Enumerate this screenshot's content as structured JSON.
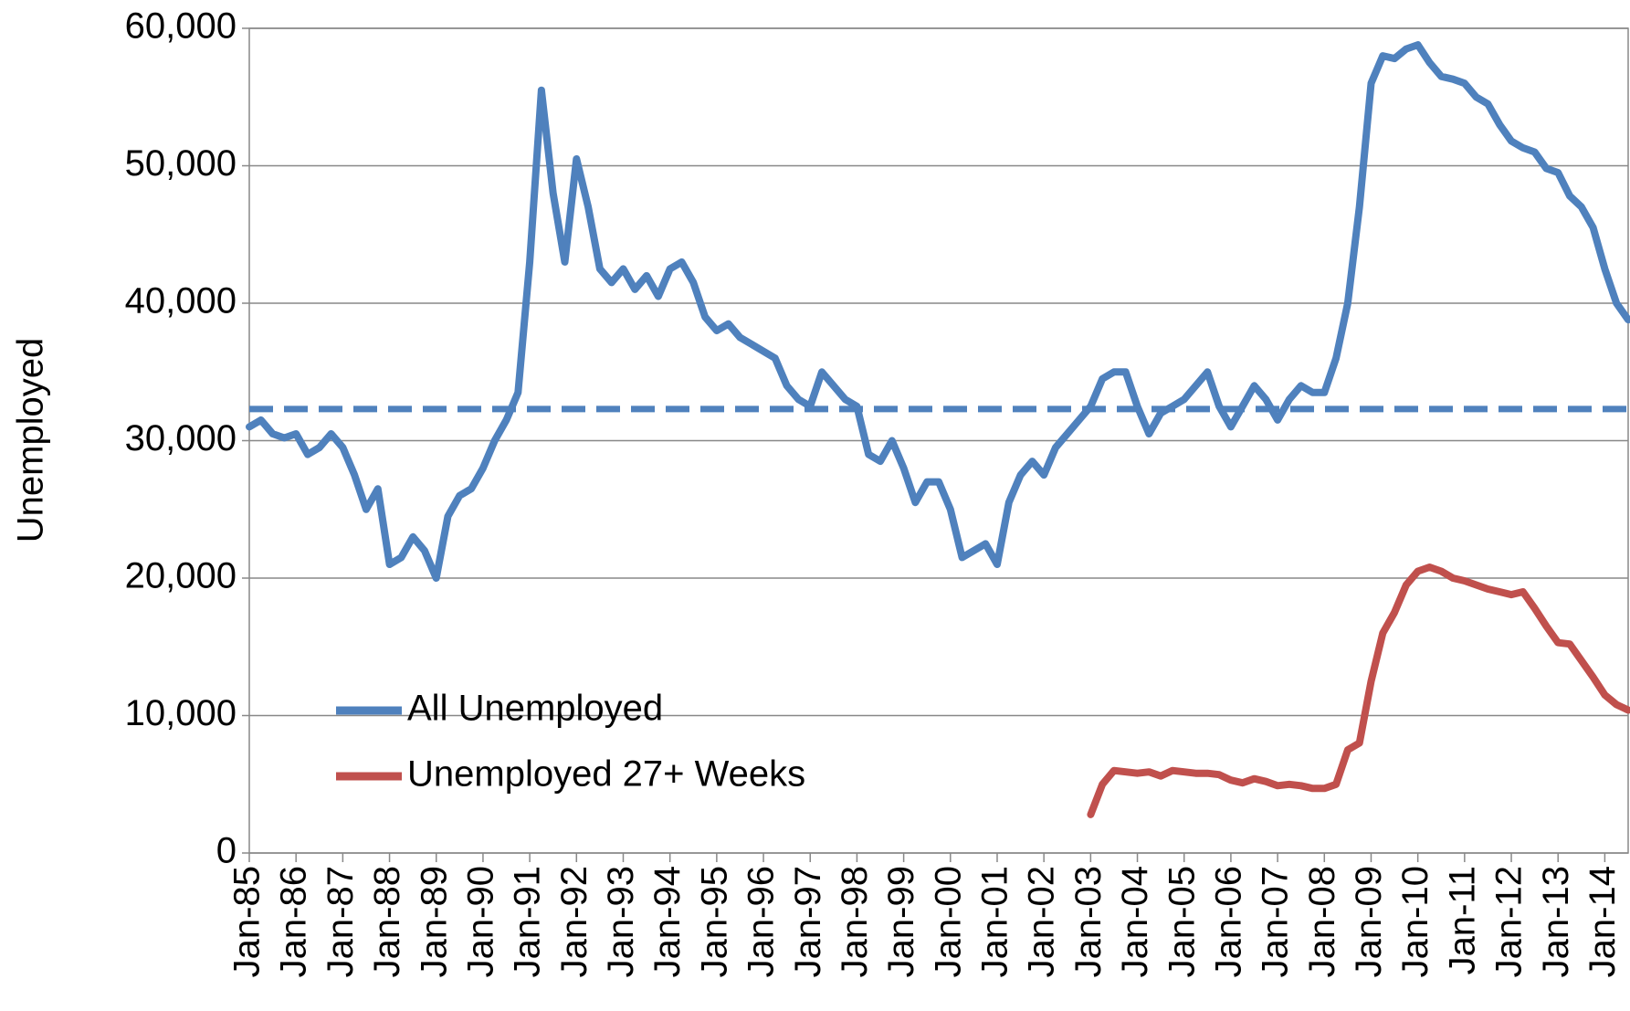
{
  "chart_data": {
    "type": "line",
    "y_label": "Unemployed",
    "categories": [
      "Jan-85",
      null,
      null,
      null,
      "Jan-86",
      null,
      null,
      null,
      "Jan-87",
      null,
      null,
      null,
      "Jan-88",
      null,
      null,
      null,
      "Jan-89",
      null,
      null,
      null,
      "Jan-90",
      null,
      null,
      null,
      "Jan-91",
      null,
      null,
      null,
      "Jan-92",
      null,
      null,
      null,
      "Jan-93",
      null,
      null,
      null,
      "Jan-94",
      null,
      null,
      null,
      "Jan-95",
      null,
      null,
      null,
      "Jan-96",
      null,
      null,
      null,
      "Jan-97",
      null,
      null,
      null,
      "Jan-98",
      null,
      null,
      null,
      "Jan-99",
      null,
      null,
      null,
      "Jan-00",
      null,
      null,
      null,
      "Jan-01",
      null,
      null,
      null,
      "Jan-02",
      null,
      null,
      null,
      "Jan-03",
      null,
      null,
      null,
      "Jan-04",
      null,
      null,
      null,
      "Jan-05",
      null,
      null,
      null,
      "Jan-06",
      null,
      null,
      null,
      "Jan-07",
      null,
      null,
      null,
      "Jan-08",
      null,
      null,
      null,
      "Jan-09",
      null,
      null,
      null,
      "Jan-10",
      null,
      null,
      null,
      "Jan-11",
      null,
      null,
      null,
      "Jan-12",
      null,
      null,
      null,
      "Jan-13",
      null,
      null,
      null,
      "Jan-14",
      null,
      null
    ],
    "series": [
      {
        "name": "All Unemployed",
        "color": "#4f81bd",
        "values": [
          31000,
          31500,
          30500,
          30200,
          30500,
          29000,
          29500,
          30500,
          29500,
          27500,
          25000,
          26500,
          21000,
          21500,
          23000,
          22000,
          20000,
          24500,
          26000,
          26500,
          28000,
          30000,
          31500,
          33500,
          43000,
          55500,
          48000,
          43000,
          50500,
          47000,
          42500,
          41500,
          42500,
          41000,
          42000,
          40500,
          42500,
          43000,
          41500,
          39000,
          38000,
          38500,
          37500,
          37000,
          36500,
          36000,
          34000,
          33000,
          32500,
          35000,
          34000,
          33000,
          32500,
          29000,
          28500,
          30000,
          28000,
          25500,
          27000,
          27000,
          25000,
          21500,
          22000,
          22500,
          21000,
          25500,
          27500,
          28500,
          27500,
          29500,
          30500,
          31500,
          32500,
          34500,
          35000,
          35000,
          32500,
          30500,
          32000,
          32500,
          33000,
          34000,
          35000,
          32500,
          31000,
          32500,
          34000,
          33000,
          31500,
          33000,
          34000,
          33500,
          33500,
          36000,
          40000,
          47000,
          56000,
          58000,
          57800,
          58500,
          58800,
          57500,
          56500,
          56300,
          56000,
          55000,
          54500,
          53000,
          51800,
          51300,
          51000,
          49800,
          49500,
          47800,
          47000,
          45500,
          42500,
          40000,
          38800
        ]
      },
      {
        "name": "Unemployed 27+ Weeks",
        "color": "#c0504d",
        "values": [
          null,
          null,
          null,
          null,
          null,
          null,
          null,
          null,
          null,
          null,
          null,
          null,
          null,
          null,
          null,
          null,
          null,
          null,
          null,
          null,
          null,
          null,
          null,
          null,
          null,
          null,
          null,
          null,
          null,
          null,
          null,
          null,
          null,
          null,
          null,
          null,
          null,
          null,
          null,
          null,
          null,
          null,
          null,
          null,
          null,
          null,
          null,
          null,
          null,
          null,
          null,
          null,
          null,
          null,
          null,
          null,
          null,
          null,
          null,
          null,
          null,
          null,
          null,
          null,
          null,
          null,
          null,
          null,
          null,
          null,
          null,
          null,
          2800,
          5000,
          6000,
          5900,
          5800,
          5900,
          5600,
          6000,
          5900,
          5800,
          5800,
          5700,
          5300,
          5100,
          5400,
          5200,
          4900,
          5000,
          4900,
          4700,
          4700,
          5000,
          7500,
          8000,
          12500,
          16000,
          17500,
          19500,
          20500,
          20800,
          20500,
          20000,
          19800,
          19500,
          19200,
          19000,
          18800,
          19000,
          17800,
          16500,
          15300,
          15200,
          14000,
          12800,
          11500,
          10800,
          10400
        ]
      }
    ],
    "hlines": [
      {
        "value": 32300,
        "color": "#4f81bd",
        "dashed": true
      }
    ],
    "ylim": [
      0,
      60000
    ],
    "yticks": [
      0,
      {
        "value": 10000,
        "label": "10,000"
      },
      {
        "value": 20000,
        "label": "20,000"
      },
      {
        "value": 30000,
        "label": "30,000"
      },
      {
        "value": 40000,
        "label": "40,000"
      },
      {
        "value": 50000,
        "label": "50,000"
      },
      {
        "value": 60000,
        "label": "60,000"
      }
    ],
    "grid": true,
    "legend": "lower-left"
  }
}
